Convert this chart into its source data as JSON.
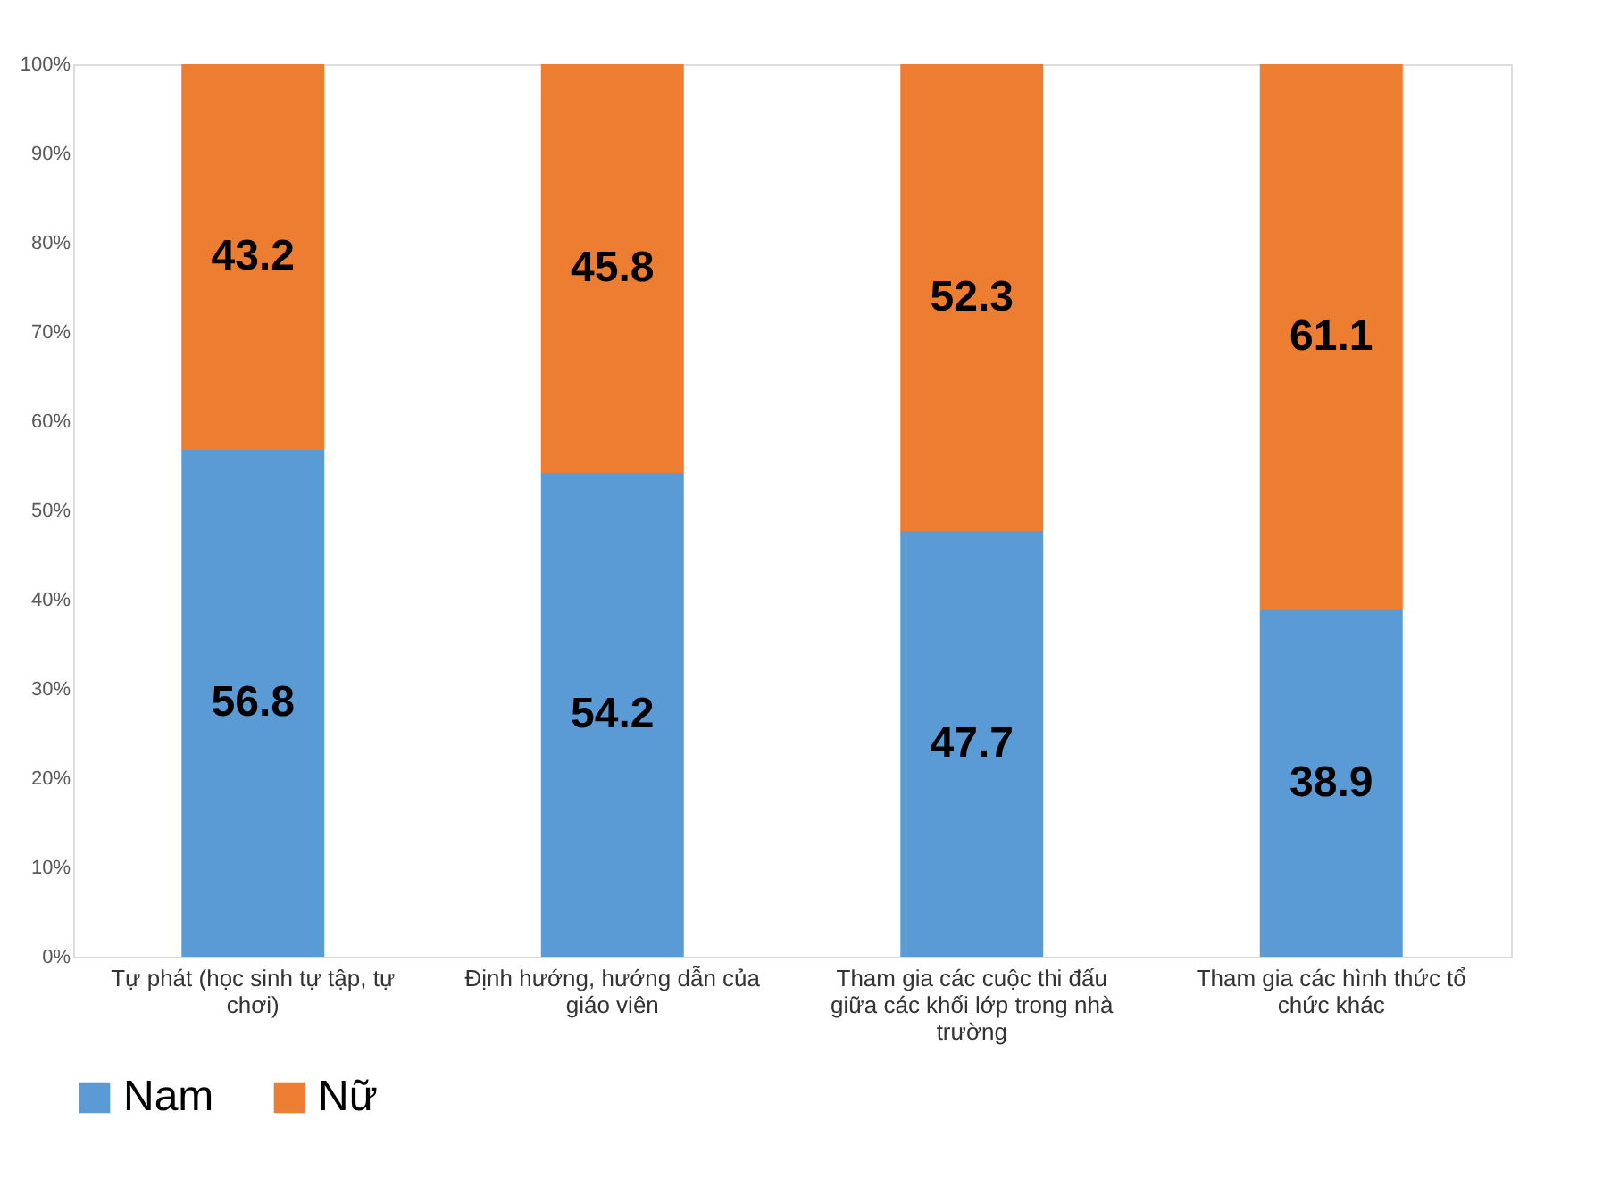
{
  "chart_data": {
    "type": "bar",
    "stacked": true,
    "categories": [
      "Tự phát (học sinh tự tập, tự chơi)",
      "Định hướng, hướng dẫn của giáo viên",
      "Tham gia các cuộc thi đấu giữa các khối lớp trong nhà trường",
      "Tham gia các hình thức tổ chức khác"
    ],
    "series": [
      {
        "name": "Nam",
        "color": "#5b9bd5",
        "values": [
          56.8,
          54.2,
          47.7,
          38.9
        ]
      },
      {
        "name": "Nữ",
        "color": "#ed7d31",
        "values": [
          43.2,
          45.8,
          52.3,
          61.1
        ]
      }
    ],
    "ylim": [
      0,
      100
    ],
    "yticks": [
      {
        "value": 0,
        "label": "0%"
      },
      {
        "value": 10,
        "label": "10%"
      },
      {
        "value": 20,
        "label": "20%"
      },
      {
        "value": 30,
        "label": "30%"
      },
      {
        "value": 40,
        "label": "40%"
      },
      {
        "value": 50,
        "label": "50%"
      },
      {
        "value": 60,
        "label": "60%"
      },
      {
        "value": 70,
        "label": "70%"
      },
      {
        "value": 80,
        "label": "80%"
      },
      {
        "value": 90,
        "label": "90%"
      },
      {
        "value": 100,
        "label": "100%"
      }
    ],
    "data_labels": true,
    "grid": false,
    "legend": "bottom"
  }
}
